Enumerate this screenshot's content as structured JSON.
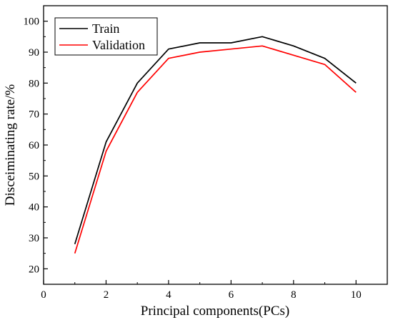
{
  "chart_data": {
    "type": "line",
    "title": "",
    "xlabel": "Principal components(PCs)",
    "ylabel": "Disceiminating rate/%",
    "xlim": [
      0,
      11
    ],
    "ylim": [
      15,
      105
    ],
    "xticks": [
      0,
      2,
      4,
      6,
      8,
      10
    ],
    "yticks": [
      20,
      30,
      40,
      50,
      60,
      70,
      80,
      90,
      100
    ],
    "grid": false,
    "legend_position": "top-left",
    "x": [
      1,
      2,
      3,
      4,
      5,
      6,
      7,
      8,
      9,
      10
    ],
    "series": [
      {
        "name": "Train",
        "color": "#000000",
        "values": [
          28,
          61,
          80,
          91,
          93,
          93,
          95,
          92,
          88,
          80
        ]
      },
      {
        "name": "Validation",
        "color": "#ff0000",
        "values": [
          25,
          58,
          77,
          88,
          90,
          91,
          92,
          89,
          86,
          77
        ]
      }
    ]
  }
}
